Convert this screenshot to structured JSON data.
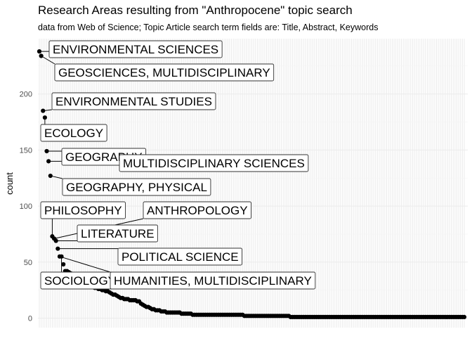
{
  "chart_data": {
    "type": "scatter",
    "title": "Research Areas resulting from \"Anthropocene\" topic search",
    "subtitle": "data from Web of Science; Topic Article search term fields are: Title, Abstract, Keywords",
    "xlabel": "",
    "ylabel": "count",
    "ylim": [
      0,
      245
    ],
    "yticks": [
      0,
      50,
      100,
      150,
      200
    ],
    "grid": true,
    "legend": "none",
    "point_color": "#000000",
    "labeled_points": [
      {
        "rank": 1,
        "name": "ENVIRONMENTAL SCIENCES",
        "count": 238
      },
      {
        "rank": 2,
        "name": "GEOSCIENCES, MULTIDISCIPLINARY",
        "count": 234
      },
      {
        "rank": 3,
        "name": "ENVIRONMENTAL STUDIES",
        "count": 185
      },
      {
        "rank": 4,
        "name": "ECOLOGY",
        "count": 179
      },
      {
        "rank": 5,
        "name": "GEOGRAPHY",
        "count": 149
      },
      {
        "rank": 6,
        "name": "MULTIDISCIPLINARY SCIENCES",
        "count": 140
      },
      {
        "rank": 7,
        "name": "GEOGRAPHY, PHYSICAL",
        "count": 127
      },
      {
        "rank": 8,
        "name": "PHILOSOPHY",
        "count": 73
      },
      {
        "rank": 9,
        "name": "ANTHROPOLOGY",
        "count": 71
      },
      {
        "rank": 10,
        "name": "LITERATURE",
        "count": 69
      },
      {
        "rank": 11,
        "name": "POLITICAL SCIENCE",
        "count": 62
      },
      {
        "rank": 12,
        "name": "HUMANITIES, MULTIDISCIPLINARY",
        "count": 55
      },
      {
        "rank": 13,
        "name": "SOCIOLOGY",
        "count": 55
      }
    ],
    "values": [
      238,
      234,
      185,
      179,
      149,
      140,
      127,
      73,
      71,
      69,
      62,
      55,
      55,
      48,
      42,
      42,
      41,
      40,
      38,
      37,
      35,
      34,
      33,
      32,
      31,
      30,
      30,
      29,
      28,
      28,
      27,
      27,
      26,
      26,
      25,
      25,
      24,
      24,
      23,
      22,
      21,
      21,
      20,
      19,
      18,
      18,
      17,
      17,
      17,
      16,
      16,
      16,
      16,
      15,
      15,
      13,
      12,
      11,
      10,
      10,
      9,
      8,
      8,
      7,
      7,
      7,
      6,
      6,
      6,
      5,
      5,
      5,
      5,
      5,
      5,
      5,
      5,
      4,
      4,
      4,
      4,
      4,
      4,
      3,
      3,
      3,
      3,
      3,
      3,
      3,
      3,
      3,
      3,
      3,
      3,
      3,
      3,
      3,
      3,
      3,
      3,
      3,
      3,
      3,
      3,
      3,
      3,
      3,
      3,
      3,
      3,
      2,
      2,
      2,
      2,
      2,
      2,
      2,
      2,
      2,
      2,
      2,
      2,
      2,
      2,
      2,
      2,
      2,
      2,
      2,
      2,
      2,
      2,
      2,
      2,
      2,
      1,
      1,
      1,
      1,
      1,
      1,
      1,
      1,
      1,
      1,
      1,
      1,
      1,
      1,
      1,
      1,
      1,
      1,
      1,
      1,
      1,
      1,
      1,
      1,
      1,
      1,
      1,
      1,
      1,
      1,
      1,
      1,
      1,
      1,
      1,
      1,
      1,
      1,
      1,
      1,
      1,
      1,
      1,
      1,
      1,
      1,
      1,
      1,
      1,
      1,
      1,
      1,
      1,
      1,
      1,
      1,
      1,
      1,
      1,
      1,
      1,
      1,
      1,
      1,
      1,
      1,
      1,
      1,
      1,
      1,
      1,
      1,
      1,
      1,
      1,
      1,
      1,
      1,
      1,
      1,
      1,
      1,
      1,
      1,
      1,
      1,
      1,
      1,
      1,
      1,
      1,
      1,
      1,
      1,
      1
    ]
  }
}
